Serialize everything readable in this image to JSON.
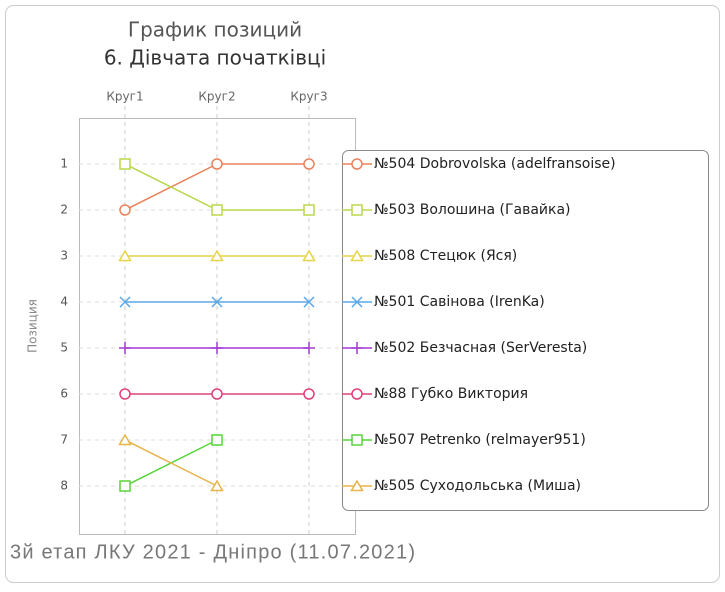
{
  "chart_data": {
    "type": "line",
    "title": "График позиций",
    "subtitle": "6. Дівчата початківці",
    "footer": "3й етап ЛКУ 2021 - Дніпро (11.07.2021)",
    "y_label": "Позиция",
    "categories": [
      "Круг1",
      "Круг2",
      "Круг3"
    ],
    "ylim": [
      0,
      9
    ],
    "y_reversed": true,
    "yticks": [
      1,
      2,
      3,
      4,
      5,
      6,
      7,
      8
    ],
    "grid": true,
    "series": [
      {
        "name": "№504 Dobrovolska (adelfransoise)",
        "color": "#e8825a",
        "marker": "circle",
        "values": [
          2,
          1,
          1
        ]
      },
      {
        "name": "№503 Волошина (Гавайка)",
        "color": "#b8d84a",
        "marker": "square",
        "values": [
          1,
          2,
          2
        ]
      },
      {
        "name": "№508 Стецюк (Яся)",
        "color": "#e6d44a",
        "marker": "triangle",
        "values": [
          3,
          3,
          3
        ]
      },
      {
        "name": "№501 Савінова (IrenKa)",
        "color": "#5aa8e8",
        "marker": "x",
        "values": [
          4,
          4,
          4
        ]
      },
      {
        "name": "№502 Безчасная (SerVeresta)",
        "color": "#a43ad6",
        "marker": "plus",
        "values": [
          5,
          5,
          5
        ]
      },
      {
        "name": "№88 Губко Виктория",
        "color": "#e0407a",
        "marker": "circle",
        "values": [
          6,
          6,
          6
        ]
      },
      {
        "name": "№507 Petrenko (relmayer951)",
        "color": "#58d43a",
        "marker": "square",
        "values": [
          8,
          7,
          null
        ]
      },
      {
        "name": "№505 Суходольська (Миша)",
        "color": "#e8b44a",
        "marker": "triangle",
        "values": [
          7,
          8,
          null
        ]
      }
    ]
  }
}
